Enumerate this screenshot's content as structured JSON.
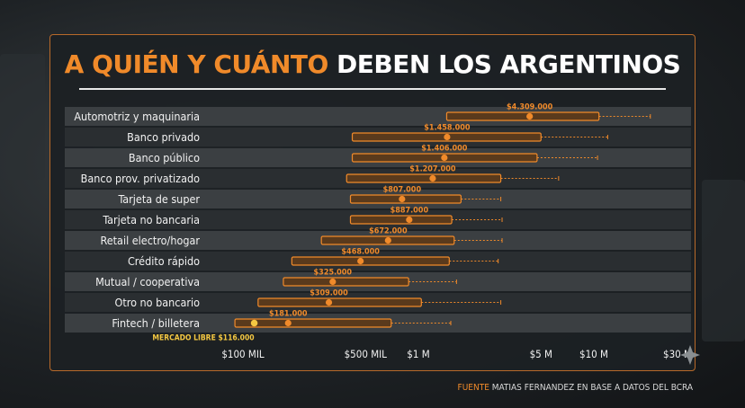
{
  "title": {
    "part1": "A QUIÉN Y CUÁNTO",
    "part2": "DEBEN LOS ARGENTINOS"
  },
  "source": {
    "label": "FUENTE",
    "text": "MATIAS FERNANDEZ EN BASE A DATOS DEL BCRA"
  },
  "colors": {
    "accent": "#f08a2a",
    "box_fill": "#5a3a1c",
    "panel_border": "#b86a2a",
    "highlight": "#f5c842",
    "row_dark": "#2a2e31",
    "row_light": "#3b3f42"
  },
  "chart_data": {
    "type": "range",
    "scale": "log",
    "xlim": [
      100000,
      30000000
    ],
    "x_ticks": [
      {
        "value": 100000,
        "label": "$100 MIL"
      },
      {
        "value": 500000,
        "label": "$500 MIL"
      },
      {
        "value": 1000000,
        "label": "$1 M"
      },
      {
        "value": 5000000,
        "label": "$5 M"
      },
      {
        "value": 10000000,
        "label": "$10 M"
      },
      {
        "value": 30000000,
        "label": "$30 M"
      }
    ],
    "rows": [
      {
        "category": "Automotriz y maquinaria",
        "value": 4309000,
        "value_label": "$4.309.000",
        "box": [
          1450000,
          10700000
        ],
        "whisker": 21000000
      },
      {
        "category": "Banco privado",
        "value": 1458000,
        "value_label": "$1.458.000",
        "box": [
          420000,
          5000000
        ],
        "whisker": 12000000
      },
      {
        "category": "Banco público",
        "value": 1406000,
        "value_label": "$1.406.000",
        "box": [
          420000,
          4750000
        ],
        "whisker": 10500000
      },
      {
        "category": "Banco prov. privatizado",
        "value": 1207000,
        "value_label": "$1.207.000",
        "box": [
          390000,
          2950000
        ],
        "whisker": 6300000
      },
      {
        "category": "Tarjeta de super",
        "value": 807000,
        "value_label": "$807.000",
        "box": [
          410000,
          1750000
        ],
        "whisker": 2950000
      },
      {
        "category": "Tarjeta no bancaria",
        "value": 887000,
        "value_label": "$887.000",
        "box": [
          410000,
          1550000
        ],
        "whisker": 3000000
      },
      {
        "category": "Retail electro/hogar",
        "value": 672000,
        "value_label": "$672.000",
        "box": [
          280000,
          1600000
        ],
        "whisker": 3000000
      },
      {
        "category": "Crédito rápido",
        "value": 468000,
        "value_label": "$468.000",
        "box": [
          190000,
          1500000
        ],
        "whisker": 2850000
      },
      {
        "category": "Mutual / cooperativa",
        "value": 325000,
        "value_label": "$325.000",
        "box": [
          170000,
          880000
        ],
        "whisker": 1650000
      },
      {
        "category": "Otro no bancario",
        "value": 309000,
        "value_label": "$309.000",
        "box": [
          122000,
          1040000
        ],
        "whisker": 2950000
      },
      {
        "category": "Fintech / billetera",
        "value": 181000,
        "value_label": "$181.000",
        "box": [
          90000,
          700000
        ],
        "whisker": 1530000
      }
    ],
    "highlight": {
      "label": "MERCADO LIBRE $116.000",
      "value": 116000,
      "row": "Fintech / billetera"
    }
  }
}
